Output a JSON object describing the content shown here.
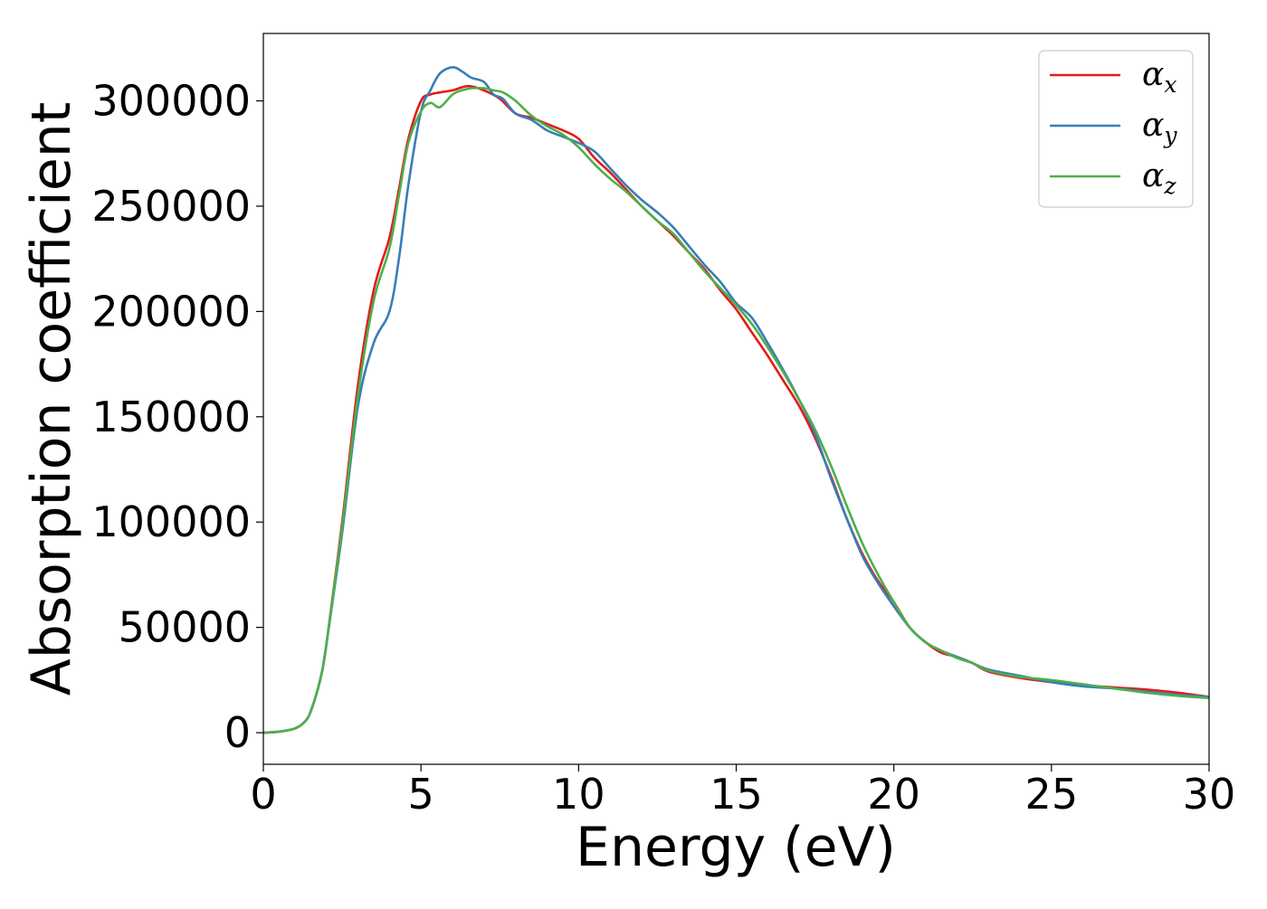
{
  "chart_data": {
    "type": "line",
    "title": "",
    "xlabel": "Energy (eV)",
    "ylabel": "Absorption coefficient",
    "xlim": [
      0,
      30
    ],
    "ylim": [
      -15000,
      332000
    ],
    "xticks": [
      0,
      5,
      10,
      15,
      20,
      25,
      30
    ],
    "yticks": [
      0,
      50000,
      100000,
      150000,
      200000,
      250000,
      300000
    ],
    "grid": false,
    "legend_position": "upper right",
    "series": [
      {
        "name": "αx",
        "legend_base": "α",
        "legend_sub": "x",
        "color": "#e41a1c",
        "x": [
          0,
          0.5,
          1.0,
          1.3,
          1.5,
          1.8,
          2.0,
          2.5,
          3.0,
          3.5,
          4.0,
          4.3,
          4.6,
          5.0,
          5.3,
          5.6,
          6.0,
          6.5,
          7.0,
          7.5,
          8.0,
          8.5,
          9.0,
          9.5,
          10.0,
          10.5,
          11.0,
          11.5,
          12.0,
          12.5,
          13.0,
          13.5,
          14.0,
          14.5,
          15.0,
          15.5,
          16.0,
          16.5,
          17.0,
          17.5,
          18.0,
          18.5,
          19.0,
          19.5,
          20.0,
          20.5,
          21.0,
          21.5,
          22.0,
          22.5,
          23.0,
          24.0,
          25.0,
          26.0,
          27.0,
          28.0,
          29.0,
          30.0
        ],
        "values": [
          0,
          500,
          2000,
          5000,
          10000,
          25000,
          42000,
          100000,
          165000,
          210000,
          235000,
          258000,
          282000,
          300000,
          303000,
          304000,
          305000,
          307000,
          305000,
          301000,
          294000,
          292000,
          289000,
          286000,
          282000,
          273000,
          266000,
          258000,
          250000,
          243000,
          236000,
          228000,
          220000,
          210000,
          201000,
          190000,
          179000,
          167000,
          155000,
          140000,
          122000,
          102000,
          85000,
          72000,
          62000,
          50000,
          43000,
          38000,
          36000,
          33000,
          29000,
          26000,
          24000,
          22500,
          21500,
          20500,
          19000,
          17000
        ]
      },
      {
        "name": "αy",
        "legend_base": "α",
        "legend_sub": "y",
        "color": "#377eb8",
        "x": [
          0,
          0.5,
          1.0,
          1.3,
          1.5,
          1.8,
          2.0,
          2.5,
          3.0,
          3.5,
          4.0,
          4.3,
          4.6,
          5.0,
          5.3,
          5.6,
          6.0,
          6.3,
          6.6,
          7.0,
          7.3,
          7.6,
          8.0,
          8.5,
          9.0,
          9.5,
          10.0,
          10.5,
          11.0,
          11.5,
          12.0,
          12.5,
          13.0,
          13.5,
          14.0,
          14.5,
          15.0,
          15.5,
          16.0,
          16.5,
          17.0,
          17.5,
          18.0,
          18.5,
          19.0,
          19.5,
          20.0,
          20.5,
          21.0,
          21.5,
          22.0,
          22.5,
          23.0,
          24.0,
          25.0,
          26.0,
          27.0,
          28.0,
          29.0,
          30.0
        ],
        "values": [
          0,
          500,
          2000,
          5000,
          10000,
          25000,
          42000,
          95000,
          155000,
          185000,
          200000,
          225000,
          260000,
          295000,
          305000,
          313000,
          316000,
          314000,
          311000,
          309000,
          303000,
          301000,
          294000,
          291000,
          286000,
          283000,
          280000,
          276000,
          268000,
          260000,
          253000,
          247000,
          240000,
          231000,
          222000,
          214000,
          204000,
          197000,
          185000,
          172000,
          158000,
          142000,
          121000,
          102000,
          84000,
          71000,
          60000,
          50000,
          43000,
          39000,
          36000,
          33000,
          30000,
          27000,
          24000,
          22000,
          21000,
          19500,
          18000,
          17000
        ]
      },
      {
        "name": "αz",
        "legend_base": "α",
        "legend_sub": "z",
        "color": "#4daf4a",
        "x": [
          0,
          0.5,
          1.0,
          1.3,
          1.5,
          1.8,
          2.0,
          2.5,
          3.0,
          3.5,
          4.0,
          4.3,
          4.6,
          5.0,
          5.3,
          5.6,
          6.0,
          6.3,
          6.6,
          7.0,
          7.3,
          7.6,
          8.0,
          8.5,
          9.0,
          9.5,
          10.0,
          10.5,
          11.0,
          11.5,
          12.0,
          12.5,
          13.0,
          13.5,
          14.0,
          14.5,
          15.0,
          15.5,
          16.0,
          16.5,
          17.0,
          17.5,
          18.0,
          18.5,
          19.0,
          19.5,
          20.0,
          20.5,
          21.0,
          21.5,
          22.0,
          22.5,
          23.0,
          24.0,
          25.0,
          26.0,
          27.0,
          28.0,
          29.0,
          30.0
        ],
        "values": [
          0,
          500,
          2000,
          5000,
          10000,
          25000,
          42000,
          98000,
          160000,
          205000,
          230000,
          255000,
          280000,
          295000,
          299000,
          297000,
          303000,
          305000,
          306000,
          306000,
          305000,
          304000,
          300000,
          293000,
          288000,
          284000,
          278000,
          270000,
          263000,
          257000,
          250000,
          243000,
          237000,
          228000,
          219000,
          211000,
          203000,
          194000,
          183000,
          171000,
          158000,
          144000,
          127000,
          108000,
          90000,
          75000,
          62000,
          50000,
          43000,
          39000,
          35500,
          33000,
          29500,
          26500,
          25000,
          23000,
          21000,
          19000,
          17500,
          16500
        ]
      }
    ]
  }
}
